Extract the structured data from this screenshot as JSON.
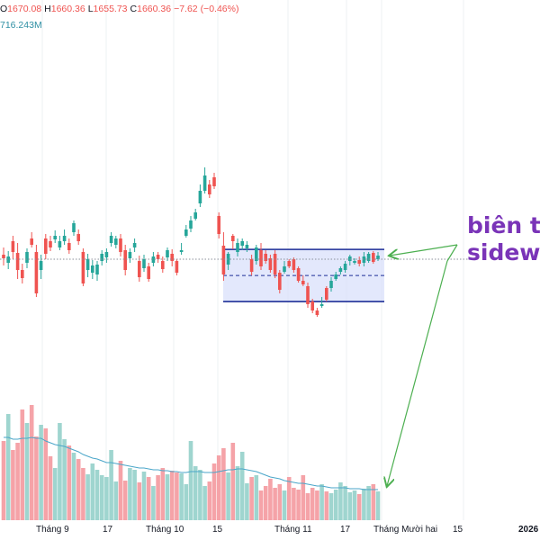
{
  "legend": {
    "open_label": "O",
    "open": "1670.08",
    "high_label": "H",
    "high": "1660.36",
    "low_label": "L",
    "low": "1655.73",
    "close_label": "C",
    "close": "1660.36",
    "change": "−7.62 (−0.46%)",
    "volume": "716.243M"
  },
  "annotation": {
    "line1": "biên t",
    "line2": "sidewa"
  },
  "x_axis": {
    "labels": [
      "Tháng 9",
      "17",
      "Tháng 10",
      "15",
      "Tháng 11",
      "17",
      "Tháng Mười hai",
      "15",
      "2026"
    ]
  },
  "colors": {
    "up": "#26a69a",
    "down": "#ef5350",
    "up_volume": "#9fd5cf",
    "down_volume": "#f5a3a8",
    "volume_ma": "#4aa6c9",
    "range_box": "#1e2f97",
    "range_fill": "#d9e0fb",
    "arrow": "#4caf50",
    "annotation_text": "#7a34b8"
  },
  "chart_data": {
    "type": "candlestick",
    "candles": [
      [
        283,
        287,
        275,
        295
      ],
      [
        292,
        285,
        279,
        299
      ],
      [
        268,
        280,
        262,
        288
      ],
      [
        281,
        300,
        270,
        310
      ],
      [
        300,
        309,
        293,
        315
      ],
      [
        292,
        280,
        276,
        298
      ],
      [
        265,
        272,
        258,
        275
      ],
      [
        280,
        326,
        272,
        330
      ],
      [
        300,
        290,
        283,
        310
      ],
      [
        265,
        282,
        260,
        288
      ],
      [
        268,
        275,
        262,
        279
      ],
      [
        266,
        262,
        256,
        270
      ],
      [
        275,
        268,
        262,
        278
      ],
      [
        268,
        262,
        255,
        272
      ],
      [
        270,
        278,
        265,
        282
      ],
      [
        258,
        248,
        245,
        262
      ],
      [
        260,
        268,
        255,
        272
      ],
      [
        280,
        315,
        276,
        318
      ],
      [
        300,
        288,
        282,
        308
      ],
      [
        303,
        295,
        289,
        310
      ],
      [
        305,
        294,
        290,
        312
      ],
      [
        290,
        282,
        278,
        295
      ],
      [
        286,
        280,
        276,
        292
      ],
      [
        270,
        262,
        258,
        274
      ],
      [
        272,
        265,
        262,
        276
      ],
      [
        265,
        280,
        260,
        285
      ],
      [
        278,
        300,
        272,
        306
      ],
      [
        287,
        280,
        276,
        292
      ],
      [
        275,
        270,
        265,
        280
      ],
      [
        290,
        308,
        284,
        313
      ],
      [
        298,
        288,
        283,
        302
      ],
      [
        296,
        310,
        292,
        313
      ],
      [
        292,
        285,
        280,
        296
      ],
      [
        283,
        288,
        280,
        292
      ],
      [
        290,
        299,
        285,
        303
      ],
      [
        286,
        278,
        275,
        290
      ],
      [
        282,
        290,
        277,
        296
      ],
      [
        290,
        303,
        288,
        306
      ],
      [
        280,
        278,
        270,
        283
      ],
      [
        262,
        255,
        250,
        264
      ],
      [
        254,
        245,
        240,
        258
      ],
      [
        243,
        236,
        232,
        245
      ],
      [
        226,
        212,
        205,
        230
      ],
      [
        212,
        195,
        186,
        215
      ],
      [
        205,
        216,
        200,
        220
      ],
      [
        197,
        207,
        192,
        210
      ],
      [
        240,
        260,
        236,
        265
      ],
      [
        273,
        305,
        258,
        312
      ],
      [
        294,
        282,
        280,
        300
      ],
      [
        262,
        268,
        260,
        277
      ],
      [
        280,
        270,
        265,
        285
      ],
      [
        273,
        268,
        265,
        278
      ],
      [
        276,
        272,
        268,
        280
      ],
      [
        288,
        302,
        283,
        306
      ],
      [
        290,
        275,
        272,
        294
      ],
      [
        278,
        296,
        270,
        300
      ],
      [
        282,
        290,
        278,
        293
      ],
      [
        287,
        300,
        283,
        303
      ],
      [
        282,
        305,
        278,
        309
      ],
      [
        303,
        322,
        300,
        326
      ],
      [
        302,
        296,
        290,
        304
      ],
      [
        290,
        296,
        288,
        298
      ],
      [
        288,
        300,
        286,
        303
      ],
      [
        298,
        312,
        296,
        314
      ],
      [
        312,
        316,
        306,
        318
      ],
      [
        318,
        338,
        314,
        342
      ],
      [
        335,
        345,
        332,
        348
      ],
      [
        345,
        350,
        342,
        352
      ],
      [
        340,
        338,
        330,
        342
      ],
      [
        320,
        333,
        318,
        335
      ],
      [
        320,
        312,
        308,
        324
      ],
      [
        310,
        305,
        302,
        312
      ],
      [
        302,
        298,
        296,
        305
      ],
      [
        300,
        293,
        290,
        303
      ],
      [
        290,
        285,
        283,
        295
      ],
      [
        292,
        290,
        287,
        294
      ],
      [
        289,
        293,
        285,
        296
      ],
      [
        292,
        285,
        280,
        296
      ],
      [
        290,
        282,
        280,
        292
      ],
      [
        281,
        291,
        279,
        293
      ],
      [
        288,
        284,
        280,
        290
      ]
    ],
    "volumes": [
      490,
      460,
      500,
      492,
      455,
      470,
      450,
      485,
      472,
      476,
      507,
      520,
      470,
      488,
      495,
      503,
      510,
      520,
      527,
      515,
      522,
      528,
      530,
      500,
      535,
      512,
      534,
      520,
      522,
      536,
      524,
      530,
      540,
      528,
      520,
      527,
      523,
      525,
      526,
      538,
      490,
      518,
      522,
      540,
      535,
      515,
      506,
      498,
      525,
      492,
      518,
      502,
      537,
      530,
      528,
      545,
      540,
      532,
      542,
      538,
      545,
      530,
      542,
      544,
      528,
      548,
      542,
      545,
      538,
      546,
      548,
      544,
      536,
      540,
      547,
      545,
      549,
      543,
      540,
      538,
      546
    ],
    "volume_ma": [
      486,
      486,
      488,
      488,
      487,
      487,
      486,
      487,
      487,
      490,
      492,
      494,
      495,
      496,
      498,
      500,
      502,
      505,
      507,
      509,
      510,
      512,
      514,
      514,
      515,
      516,
      517,
      518,
      519,
      520,
      520,
      521,
      522,
      522,
      523,
      523,
      524,
      524,
      525,
      525,
      524,
      524,
      524,
      525,
      525,
      525,
      524,
      523,
      522,
      522,
      521,
      521,
      522,
      523,
      524,
      526,
      528,
      530,
      531,
      532,
      534,
      535,
      536,
      537,
      537,
      538,
      539,
      540,
      540,
      541,
      542,
      542,
      542,
      542,
      543,
      543,
      543,
      544,
      544,
      544,
      544
    ],
    "range_box": {
      "top": 1672,
      "bottom": 1610,
      "mid": 1641
    },
    "last_price": 1660.36,
    "arrows": [
      {
        "label": "biên t sideways"
      }
    ],
    "x_labels": [
      "Tháng 9",
      "17",
      "Tháng 10",
      "15",
      "Tháng 11",
      "17",
      "Tháng Mười hai",
      "15",
      "2026"
    ]
  }
}
